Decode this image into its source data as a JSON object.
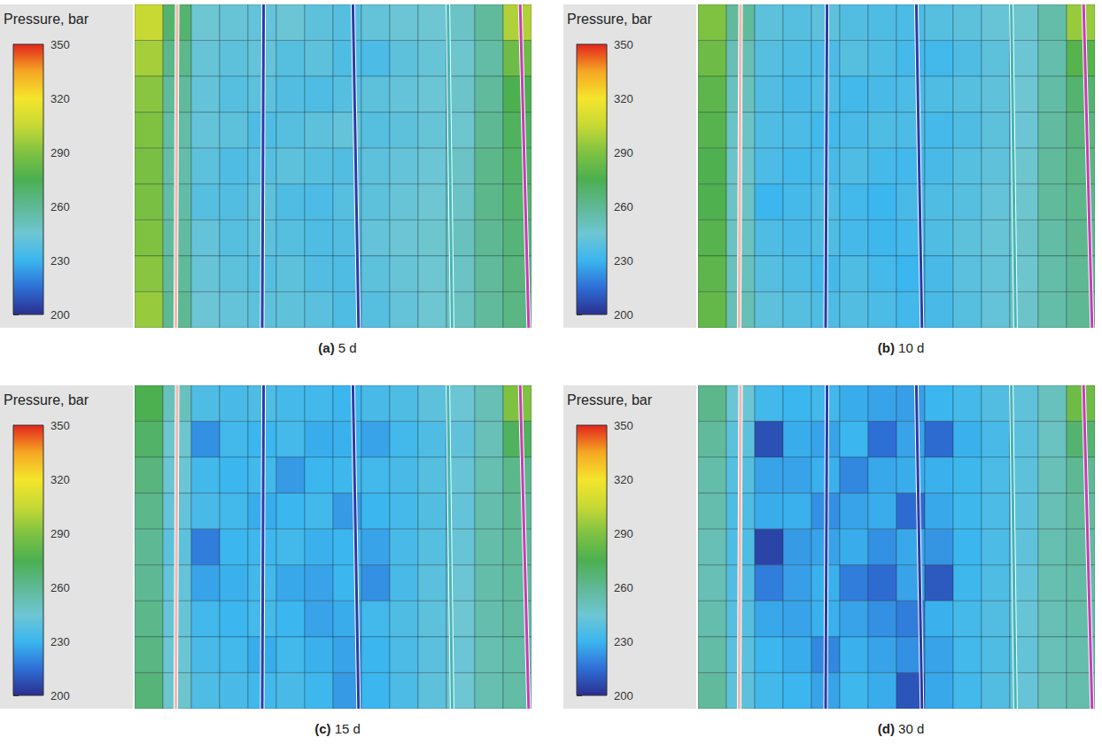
{
  "chart_data": [
    {
      "type": "heatmap",
      "title": "(a) 5 d",
      "colorbar": {
        "title": "Pressure, bar",
        "range": [
          200,
          350
        ],
        "ticks": [
          200,
          230,
          260,
          290,
          320,
          350
        ],
        "colors": [
          "#2a2f8f",
          "#2e6fd6",
          "#3bb6ef",
          "#6ec6d2",
          "#5fb894",
          "#4caf50",
          "#7fc242",
          "#c8d934",
          "#f4e52b",
          "#f5a623",
          "#e3251c"
        ]
      },
      "wells": [
        {
          "color": "#f2b8b0",
          "x": [
            1.5,
            1.45
          ]
        },
        {
          "color": "#2a3aa8",
          "x": [
            4.55,
            4.5
          ]
        },
        {
          "color": "#2a3aa8",
          "x": [
            7.7,
            7.9
          ]
        },
        {
          "color": "#3fb8b8",
          "x": [
            11.05,
            11.2
          ]
        },
        {
          "color": "#c83cb4",
          "x": [
            13.6,
            13.9
          ]
        }
      ],
      "cells": [
        [
          305,
          268,
          245,
          243,
          242,
          244,
          240,
          238,
          242,
          244,
          245,
          248,
          258,
          300
        ],
        [
          298,
          262,
          243,
          240,
          242,
          238,
          240,
          236,
          235,
          240,
          243,
          246,
          256,
          285
        ],
        [
          292,
          258,
          242,
          238,
          240,
          237,
          236,
          238,
          240,
          242,
          244,
          247,
          258,
          275
        ],
        [
          290,
          256,
          242,
          240,
          236,
          238,
          240,
          242,
          238,
          240,
          243,
          246,
          260,
          272
        ],
        [
          288,
          255,
          240,
          236,
          238,
          240,
          238,
          237,
          240,
          242,
          244,
          248,
          262,
          270
        ],
        [
          288,
          256,
          238,
          237,
          240,
          236,
          235,
          238,
          240,
          243,
          245,
          248,
          262,
          268
        ],
        [
          290,
          257,
          242,
          238,
          240,
          238,
          236,
          237,
          242,
          244,
          246,
          250,
          260,
          266
        ],
        [
          292,
          258,
          243,
          240,
          238,
          240,
          237,
          236,
          240,
          243,
          245,
          248,
          258,
          265
        ],
        [
          295,
          260,
          244,
          242,
          240,
          241,
          239,
          236,
          238,
          242,
          245,
          249,
          258,
          264
        ]
      ]
    },
    {
      "type": "heatmap",
      "title": "(b) 10 d",
      "colorbar": {
        "title": "Pressure, bar",
        "range": [
          200,
          350
        ],
        "ticks": [
          200,
          230,
          260,
          290,
          320,
          350
        ],
        "colors": [
          "#2a2f8f",
          "#2e6fd6",
          "#3bb6ef",
          "#6ec6d2",
          "#5fb894",
          "#4caf50",
          "#7fc242",
          "#c8d934",
          "#f4e52b",
          "#f5a623",
          "#e3251c"
        ]
      },
      "wells": [
        {
          "color": "#f2b8b0",
          "x": [
            1.5,
            1.45
          ]
        },
        {
          "color": "#2a3aa8",
          "x": [
            4.55,
            4.5
          ]
        },
        {
          "color": "#2a3aa8",
          "x": [
            7.7,
            7.9
          ]
        },
        {
          "color": "#3fb8b8",
          "x": [
            11.05,
            11.2
          ]
        },
        {
          "color": "#c83cb4",
          "x": [
            13.6,
            13.9
          ]
        }
      ],
      "cells": [
        [
          290,
          258,
          240,
          238,
          240,
          237,
          236,
          235,
          238,
          240,
          243,
          246,
          255,
          295
        ],
        [
          285,
          252,
          238,
          236,
          235,
          238,
          236,
          233,
          232,
          236,
          240,
          244,
          254,
          278
        ],
        [
          280,
          250,
          237,
          234,
          236,
          232,
          234,
          235,
          236,
          238,
          241,
          245,
          256,
          268
        ],
        [
          278,
          248,
          236,
          235,
          232,
          234,
          236,
          235,
          233,
          236,
          240,
          244,
          257,
          265
        ],
        [
          276,
          247,
          235,
          232,
          234,
          236,
          233,
          232,
          234,
          238,
          241,
          246,
          258,
          264
        ],
        [
          276,
          248,
          230,
          233,
          236,
          232,
          230,
          234,
          236,
          238,
          242,
          246,
          258,
          262
        ],
        [
          278,
          249,
          236,
          234,
          236,
          233,
          231,
          232,
          236,
          240,
          243,
          247,
          256,
          261
        ],
        [
          280,
          250,
          238,
          236,
          233,
          236,
          233,
          230,
          234,
          239,
          242,
          246,
          255,
          260
        ],
        [
          282,
          252,
          240,
          238,
          236,
          237,
          235,
          232,
          234,
          238,
          242,
          247,
          255,
          260
        ]
      ]
    },
    {
      "type": "heatmap",
      "title": "(c) 15 d",
      "colorbar": {
        "title": "Pressure, bar",
        "range": [
          200,
          350
        ],
        "ticks": [
          200,
          230,
          260,
          290,
          320,
          350
        ],
        "colors": [
          "#2a2f8f",
          "#2e6fd6",
          "#3bb6ef",
          "#6ec6d2",
          "#5fb894",
          "#4caf50",
          "#7fc242",
          "#c8d934",
          "#f4e52b",
          "#f5a623",
          "#e3251c"
        ]
      },
      "wells": [
        {
          "color": "#f2b8b0",
          "x": [
            1.5,
            1.45
          ]
        },
        {
          "color": "#2a3aa8",
          "x": [
            4.55,
            4.5
          ]
        },
        {
          "color": "#2a3aa8",
          "x": [
            7.7,
            7.9
          ]
        },
        {
          "color": "#3fb8b8",
          "x": [
            11.05,
            11.2
          ]
        },
        {
          "color": "#c83cb4",
          "x": [
            13.6,
            13.9
          ]
        }
      ],
      "cells": [
        [
          275,
          250,
          236,
          234,
          236,
          233,
          232,
          230,
          234,
          236,
          240,
          244,
          252,
          290
        ],
        [
          270,
          246,
          222,
          232,
          230,
          233,
          228,
          229,
          226,
          232,
          236,
          241,
          251,
          272
        ],
        [
          265,
          244,
          232,
          230,
          232,
          224,
          230,
          231,
          232,
          234,
          238,
          243,
          253,
          262
        ],
        [
          262,
          242,
          234,
          232,
          228,
          230,
          232,
          224,
          230,
          233,
          237,
          242,
          254,
          260
        ],
        [
          260,
          240,
          218,
          230,
          231,
          232,
          229,
          230,
          226,
          234,
          238,
          243,
          255,
          259
        ],
        [
          260,
          242,
          226,
          229,
          232,
          227,
          226,
          230,
          222,
          234,
          239,
          244,
          255,
          258
        ],
        [
          262,
          243,
          232,
          230,
          233,
          230,
          226,
          228,
          232,
          236,
          240,
          245,
          254,
          257
        ],
        [
          264,
          244,
          234,
          232,
          228,
          232,
          229,
          226,
          230,
          235,
          239,
          244,
          253,
          256
        ],
        [
          266,
          246,
          236,
          234,
          232,
          234,
          231,
          224,
          230,
          235,
          240,
          245,
          253,
          256
        ]
      ]
    },
    {
      "type": "heatmap",
      "title": "(d) 30 d",
      "colorbar": {
        "title": "Pressure, bar",
        "range": [
          200,
          350
        ],
        "ticks": [
          200,
          230,
          260,
          290,
          320,
          350
        ],
        "colors": [
          "#2a2f8f",
          "#2e6fd6",
          "#3bb6ef",
          "#6ec6d2",
          "#5fb894",
          "#4caf50",
          "#7fc242",
          "#c8d934",
          "#f4e52b",
          "#f5a623",
          "#e3251c"
        ]
      },
      "wells": [
        {
          "color": "#f2b8b0",
          "x": [
            1.5,
            1.45
          ]
        },
        {
          "color": "#2a3aa8",
          "x": [
            4.55,
            4.5
          ]
        },
        {
          "color": "#2a3aa8",
          "x": [
            7.7,
            7.9
          ]
        },
        {
          "color": "#3fb8b8",
          "x": [
            11.05,
            11.2
          ]
        },
        {
          "color": "#c83cb4",
          "x": [
            13.6,
            13.9
          ]
        }
      ],
      "cells": [
        [
          262,
          244,
          232,
          230,
          232,
          228,
          226,
          225,
          230,
          233,
          237,
          241,
          250,
          285
        ],
        [
          258,
          240,
          208,
          228,
          226,
          230,
          215,
          226,
          214,
          229,
          234,
          239,
          249,
          268
        ],
        [
          255,
          238,
          226,
          226,
          229,
          220,
          227,
          228,
          229,
          231,
          235,
          240,
          251,
          260
        ],
        [
          254,
          236,
          228,
          229,
          222,
          226,
          228,
          214,
          227,
          231,
          235,
          240,
          252,
          258
        ],
        [
          252,
          236,
          205,
          224,
          226,
          228,
          222,
          227,
          223,
          230,
          235,
          241,
          253,
          257
        ],
        [
          252,
          237,
          218,
          225,
          229,
          218,
          214,
          226,
          210,
          231,
          236,
          242,
          253,
          256
        ],
        [
          254,
          238,
          227,
          226,
          229,
          226,
          222,
          218,
          229,
          233,
          237,
          243,
          252,
          255
        ],
        [
          256,
          239,
          230,
          228,
          220,
          229,
          226,
          222,
          226,
          232,
          236,
          242,
          251,
          254
        ],
        [
          258,
          240,
          232,
          230,
          226,
          231,
          228,
          209,
          227,
          232,
          237,
          243,
          251,
          254
        ]
      ]
    }
  ]
}
